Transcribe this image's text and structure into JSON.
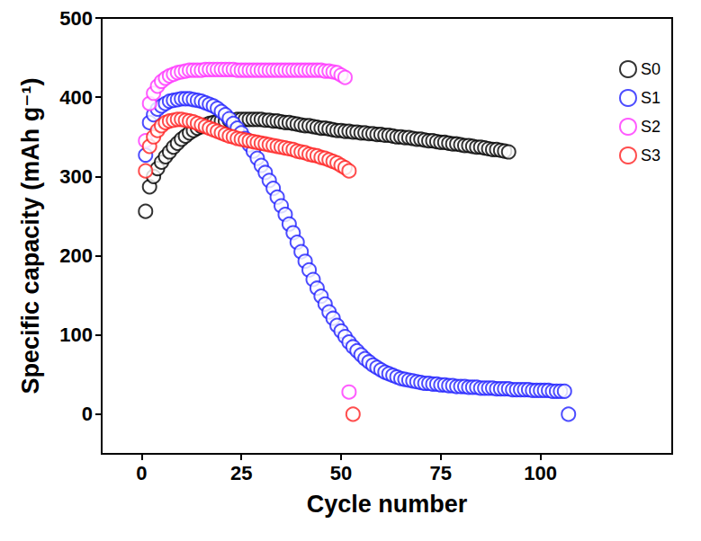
{
  "chart_data": {
    "type": "scatter",
    "x_label": "Cycle number",
    "y_label": "Specific capacity (mAh g⁻¹)",
    "xlim": [
      -10,
      133
    ],
    "xticks": [
      0,
      25,
      50,
      75,
      100
    ],
    "ylim": [
      -50,
      500
    ],
    "yticks": [
      0,
      100,
      200,
      300,
      400,
      500
    ],
    "grid": false,
    "legend": "upper right",
    "marker": "emptyCircle",
    "series": [
      {
        "name": "S0",
        "color": "#000000",
        "x": [
          1,
          2,
          3,
          4,
          5,
          6,
          7,
          8,
          9,
          10,
          11,
          12,
          13,
          14,
          15,
          16,
          17,
          18,
          19,
          20,
          21,
          22,
          23,
          24,
          25,
          26,
          27,
          28,
          29,
          30,
          31,
          32,
          33,
          34,
          35,
          36,
          37,
          38,
          39,
          40,
          41,
          42,
          43,
          44,
          45,
          46,
          47,
          48,
          49,
          50,
          51,
          52,
          53,
          54,
          55,
          56,
          57,
          58,
          59,
          60,
          61,
          62,
          63,
          64,
          65,
          66,
          67,
          68,
          69,
          70,
          71,
          72,
          73,
          74,
          75,
          76,
          77,
          78,
          79,
          80,
          81,
          82,
          83,
          84,
          85,
          86,
          87,
          88,
          89,
          90,
          91,
          92
        ],
        "values": [
          256,
          287,
          300,
          310,
          318,
          325,
          331,
          337,
          342,
          347,
          351,
          355,
          358,
          361,
          363,
          365,
          367,
          368,
          369,
          370,
          370,
          371,
          371,
          372,
          372,
          372,
          372,
          372,
          372,
          372,
          371,
          371,
          370,
          370,
          369,
          368,
          368,
          367,
          366,
          365,
          364,
          364,
          363,
          362,
          361,
          361,
          360,
          359,
          358,
          358,
          357,
          357,
          356,
          356,
          355,
          355,
          354,
          354,
          353,
          353,
          352,
          352,
          351,
          350,
          350,
          349,
          349,
          348,
          347,
          347,
          346,
          345,
          345,
          344,
          343,
          343,
          342,
          341,
          341,
          340,
          339,
          339,
          338,
          337,
          337,
          336,
          335,
          334,
          334,
          333,
          332,
          331
        ]
      },
      {
        "name": "S1",
        "color": "#2020ff",
        "x": [
          1,
          2,
          3,
          4,
          5,
          6,
          7,
          8,
          9,
          10,
          11,
          12,
          13,
          14,
          15,
          16,
          17,
          18,
          19,
          20,
          21,
          22,
          23,
          24,
          25,
          26,
          27,
          28,
          29,
          30,
          31,
          32,
          33,
          34,
          35,
          36,
          37,
          38,
          39,
          40,
          41,
          42,
          43,
          44,
          45,
          46,
          47,
          48,
          49,
          50,
          51,
          52,
          53,
          54,
          55,
          56,
          57,
          58,
          59,
          60,
          61,
          62,
          63,
          64,
          65,
          66,
          67,
          68,
          69,
          70,
          71,
          72,
          73,
          74,
          75,
          76,
          77,
          78,
          79,
          80,
          81,
          82,
          83,
          84,
          85,
          86,
          87,
          88,
          89,
          90,
          91,
          92,
          93,
          94,
          95,
          96,
          97,
          98,
          99,
          100,
          101,
          102,
          103,
          104,
          105,
          106,
          107
        ],
        "values": [
          327,
          368,
          378,
          385,
          389,
          392,
          395,
          396,
          397,
          398,
          398,
          398,
          397,
          396,
          395,
          393,
          391,
          389,
          386,
          382,
          378,
          373,
          367,
          361,
          355,
          348,
          340,
          332,
          323,
          314,
          305,
          295,
          285,
          274,
          263,
          252,
          240,
          229,
          217,
          205,
          193,
          182,
          170,
          159,
          149,
          139,
          129,
          121,
          112,
          105,
          98,
          91,
          85,
          80,
          75,
          70,
          66,
          62,
          59,
          56,
          53,
          51,
          49,
          47,
          45,
          44,
          43,
          42,
          41,
          40,
          39,
          39,
          38,
          38,
          37,
          37,
          36,
          36,
          35,
          35,
          35,
          34,
          34,
          34,
          33,
          33,
          33,
          33,
          32,
          32,
          32,
          32,
          31,
          31,
          31,
          31,
          31,
          30,
          30,
          30,
          30,
          30,
          29,
          29,
          29,
          29,
          0
        ]
      },
      {
        "name": "S2",
        "color": "#ff33ff",
        "x": [
          1,
          2,
          3,
          4,
          5,
          6,
          7,
          8,
          9,
          10,
          11,
          12,
          13,
          14,
          15,
          16,
          17,
          18,
          19,
          20,
          21,
          22,
          23,
          24,
          25,
          26,
          27,
          28,
          29,
          30,
          31,
          32,
          33,
          34,
          35,
          36,
          37,
          38,
          39,
          40,
          41,
          42,
          43,
          44,
          45,
          46,
          47,
          48,
          49,
          50,
          51,
          52
        ],
        "values": [
          345,
          392,
          405,
          414,
          420,
          424,
          427,
          429,
          431,
          432,
          433,
          434,
          434,
          434,
          434,
          435,
          435,
          435,
          435,
          435,
          435,
          435,
          435,
          434,
          434,
          434,
          434,
          434,
          434,
          434,
          434,
          434,
          434,
          434,
          434,
          434,
          434,
          434,
          434,
          434,
          434,
          434,
          434,
          434,
          434,
          433,
          433,
          432,
          431,
          428,
          425,
          28
        ]
      },
      {
        "name": "S3",
        "color": "#ff2020",
        "x": [
          1,
          2,
          3,
          4,
          5,
          6,
          7,
          8,
          9,
          10,
          11,
          12,
          13,
          14,
          15,
          16,
          17,
          18,
          19,
          20,
          21,
          22,
          23,
          24,
          25,
          26,
          27,
          28,
          29,
          30,
          31,
          32,
          33,
          34,
          35,
          36,
          37,
          38,
          39,
          40,
          41,
          42,
          43,
          44,
          45,
          46,
          47,
          48,
          49,
          50,
          51,
          52,
          53
        ],
        "values": [
          307,
          338,
          350,
          358,
          364,
          368,
          370,
          371,
          372,
          372,
          371,
          370,
          369,
          367,
          365,
          363,
          361,
          359,
          357,
          355,
          353,
          351,
          350,
          348,
          347,
          346,
          345,
          344,
          343,
          342,
          341,
          340,
          339,
          338,
          337,
          336,
          335,
          334,
          332,
          331,
          330,
          328,
          327,
          326,
          324,
          323,
          321,
          319,
          317,
          314,
          311,
          307,
          0
        ]
      }
    ]
  }
}
